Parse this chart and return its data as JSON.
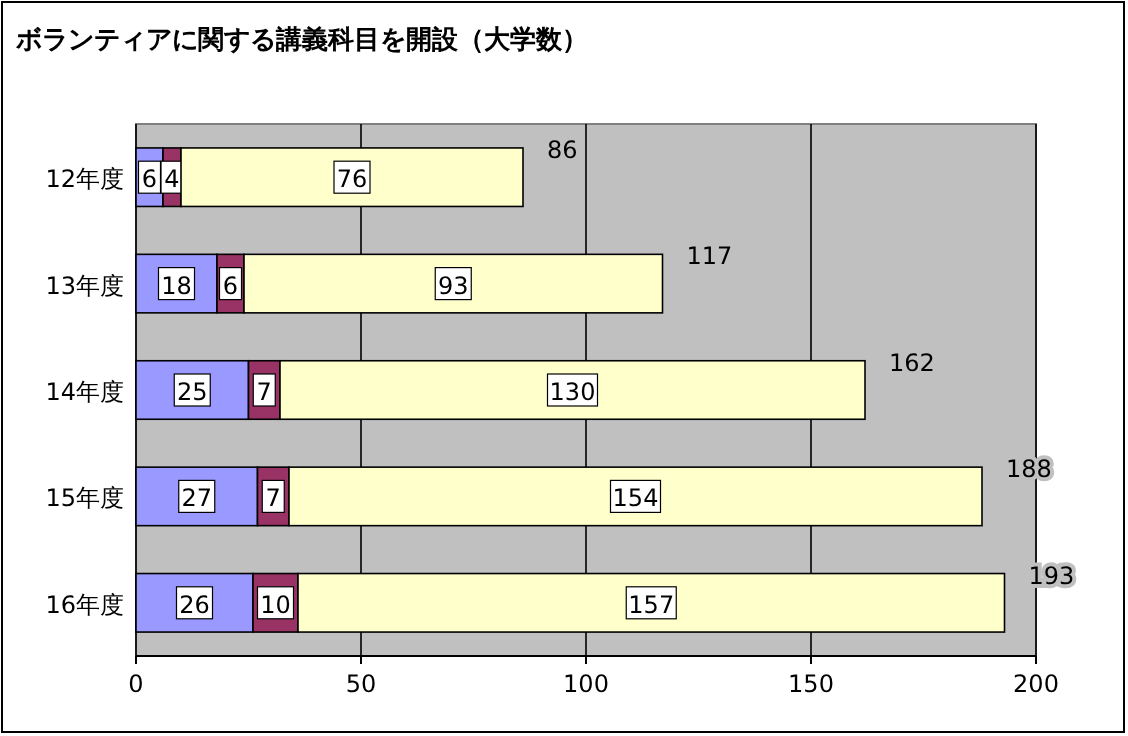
{
  "chart_data": {
    "type": "bar",
    "orientation": "horizontal",
    "stacked": true,
    "title": "ボランティアに関する講義科目を開設（大学数）",
    "categories": [
      "12年度",
      "13年度",
      "14年度",
      "15年度",
      "16年度"
    ],
    "series": [
      {
        "color": "#9999ff",
        "values": [
          6,
          18,
          25,
          27,
          26
        ]
      },
      {
        "color": "#993366",
        "values": [
          4,
          6,
          7,
          7,
          10
        ]
      },
      {
        "color": "#ffffcc",
        "values": [
          76,
          93,
          130,
          154,
          157
        ]
      }
    ],
    "totals": [
      "86",
      "117",
      "162",
      "188",
      "193"
    ],
    "data_labels": true,
    "xlim": [
      0,
      200
    ],
    "xticks": [
      0,
      50,
      100,
      150,
      200
    ],
    "grid": "x"
  }
}
